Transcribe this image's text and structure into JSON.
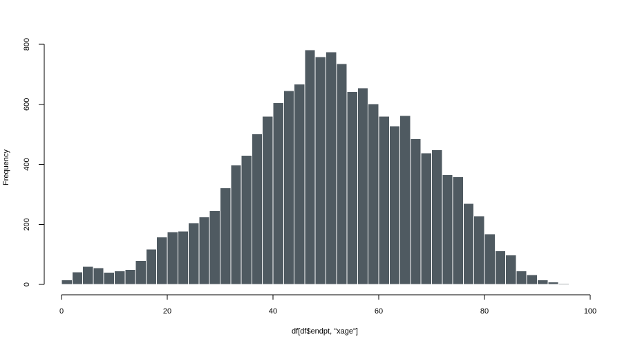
{
  "chart_data": {
    "type": "bar",
    "title": "",
    "xlabel": "df[df$endpt, \"xage\"]",
    "ylabel": "Frequency",
    "xlim": [
      0,
      100
    ],
    "ylim": [
      0,
      800
    ],
    "x_ticks": [
      "0",
      "20",
      "40",
      "60",
      "80",
      "100"
    ],
    "y_ticks": [
      "0",
      "200",
      "400",
      "600",
      "800"
    ],
    "bin_width": 2,
    "bins_start": [
      0,
      2,
      4,
      6,
      8,
      10,
      12,
      14,
      16,
      18,
      20,
      22,
      24,
      26,
      28,
      30,
      32,
      34,
      36,
      38,
      40,
      42,
      44,
      46,
      48,
      50,
      52,
      54,
      56,
      58,
      60,
      62,
      64,
      66,
      68,
      70,
      72,
      74,
      76,
      78,
      80,
      82,
      84,
      86,
      88,
      90,
      92,
      94
    ],
    "values": [
      15,
      42,
      60,
      55,
      40,
      45,
      50,
      80,
      118,
      158,
      175,
      178,
      205,
      225,
      245,
      322,
      398,
      430,
      502,
      560,
      605,
      645,
      668,
      782,
      758,
      775,
      735,
      642,
      655,
      602,
      560,
      528,
      562,
      485,
      438,
      448,
      365,
      358,
      270,
      228,
      168,
      112,
      98,
      45,
      32,
      15,
      8,
      3
    ],
    "bar_color": "#4f5a61",
    "bar_border_color": "#ffffff",
    "grid": false
  }
}
